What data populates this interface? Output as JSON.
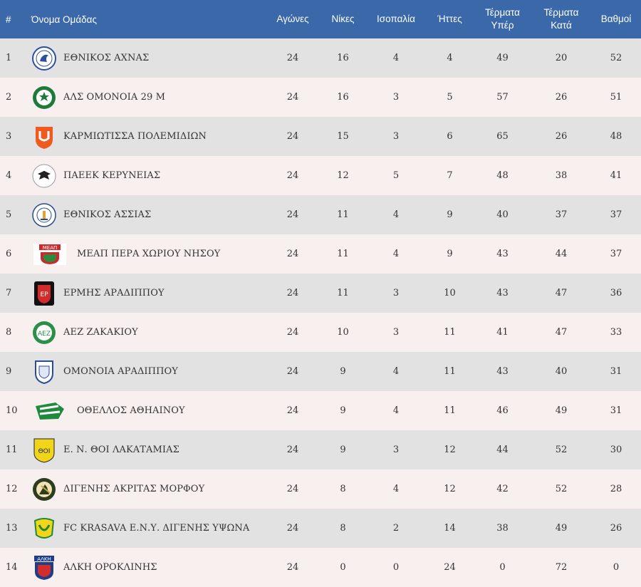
{
  "headers": {
    "pos": "#",
    "team": "Όνομα Ομάδας",
    "played": "Αγώνες",
    "wins": "Νίκες",
    "draws": "Ισοπαλία",
    "losses": "Ήττες",
    "gf_line1": "Τέρματα",
    "gf_line2": "Υπέρ",
    "ga_line1": "Τέρματα",
    "ga_line2": "Κατά",
    "points": "Βαθμοί"
  },
  "colors": {
    "header_bg": "#3a68a8",
    "row_odd": "#e2e2e2",
    "row_even": "#f8efef"
  },
  "rows": [
    {
      "pos": "1",
      "team": "ΕΘΝΙΚΟΣ ΑΧΝΑΣ",
      "crest": "ethnikos-achnas-crest",
      "played": "24",
      "wins": "16",
      "draws": "4",
      "losses": "4",
      "gf": "49",
      "ga": "20",
      "points": "52"
    },
    {
      "pos": "2",
      "team": "ΑΛΣ ΟΜΟΝΟΙΑ 29 Μ",
      "crest": "omonoia-29m-crest",
      "played": "24",
      "wins": "16",
      "draws": "3",
      "losses": "5",
      "gf": "57",
      "ga": "26",
      "points": "51"
    },
    {
      "pos": "3",
      "team": "ΚΑΡΜΙΩΤΙΣΣΑ ΠΟΛΕΜΙΔΙΩΝ",
      "crest": "karmiotissa-crest",
      "played": "24",
      "wins": "15",
      "draws": "3",
      "losses": "6",
      "gf": "65",
      "ga": "26",
      "points": "48"
    },
    {
      "pos": "4",
      "team": "ΠΑΕΕΚ ΚΕΡΥΝΕΙΑΣ",
      "crest": "paeek-crest",
      "played": "24",
      "wins": "12",
      "draws": "5",
      "losses": "7",
      "gf": "48",
      "ga": "38",
      "points": "41"
    },
    {
      "pos": "5",
      "team": "ΕΘΝΙΚΟΣ ΑΣΣΙΑΣ",
      "crest": "ethnikos-assias-crest",
      "played": "24",
      "wins": "11",
      "draws": "4",
      "losses": "9",
      "gf": "40",
      "ga": "37",
      "points": "37"
    },
    {
      "pos": "6",
      "team": "ΜΕΑΠ ΠΕΡΑ ΧΩΡΙΟΥ ΝΗΣΟΥ",
      "crest": "meap-crest",
      "played": "24",
      "wins": "11",
      "draws": "4",
      "losses": "9",
      "gf": "43",
      "ga": "44",
      "points": "37"
    },
    {
      "pos": "7",
      "team": "ΕΡΜΗΣ ΑΡΑΔΙΠΠΟΥ",
      "crest": "ermis-crest",
      "played": "24",
      "wins": "11",
      "draws": "3",
      "losses": "10",
      "gf": "43",
      "ga": "47",
      "points": "36"
    },
    {
      "pos": "8",
      "team": "ΑΕΖ ΖΑΚΑΚΙΟΥ",
      "crest": "aez-crest",
      "played": "24",
      "wins": "10",
      "draws": "3",
      "losses": "11",
      "gf": "41",
      "ga": "47",
      "points": "33"
    },
    {
      "pos": "9",
      "team": "ΟΜΟΝΟΙΑ ΑΡΑΔΙΠΠΟΥ",
      "crest": "omonoia-aradippou-crest",
      "played": "24",
      "wins": "9",
      "draws": "4",
      "losses": "11",
      "gf": "43",
      "ga": "40",
      "points": "31"
    },
    {
      "pos": "10",
      "team": "ΟΘΕΛΛΟΣ ΑΘΗΑΙΝΟΥ",
      "crest": "othellos-crest",
      "played": "24",
      "wins": "9",
      "draws": "4",
      "losses": "11",
      "gf": "46",
      "ga": "49",
      "points": "31"
    },
    {
      "pos": "11",
      "team": "Ε. Ν. ΘΟΙ ΛΑΚΑΤΑΜΙΑΣ",
      "crest": "thoi-crest",
      "played": "24",
      "wins": "9",
      "draws": "3",
      "losses": "12",
      "gf": "44",
      "ga": "52",
      "points": "30"
    },
    {
      "pos": "12",
      "team": "ΔΙΓΕΝΗΣ ΑΚΡΙΤΑΣ ΜΟΡΦΟΥ",
      "crest": "digenis-morfou-crest",
      "played": "24",
      "wins": "8",
      "draws": "4",
      "losses": "12",
      "gf": "42",
      "ga": "52",
      "points": "28"
    },
    {
      "pos": "13",
      "team": "FC KRASAVA Ε.Ν.Υ. ΔΙΓΕΝΗΣ ΥΨΩΝΑ",
      "crest": "krasava-crest",
      "played": "24",
      "wins": "8",
      "draws": "2",
      "losses": "14",
      "gf": "38",
      "ga": "49",
      "points": "26"
    },
    {
      "pos": "14",
      "team": "ΑΛΚΗ ΟΡΟΚΛΙΝΗΣ",
      "crest": "alki-crest",
      "played": "24",
      "wins": "0",
      "draws": "0",
      "losses": "24",
      "gf": "0",
      "ga": "72",
      "points": "0"
    }
  ]
}
